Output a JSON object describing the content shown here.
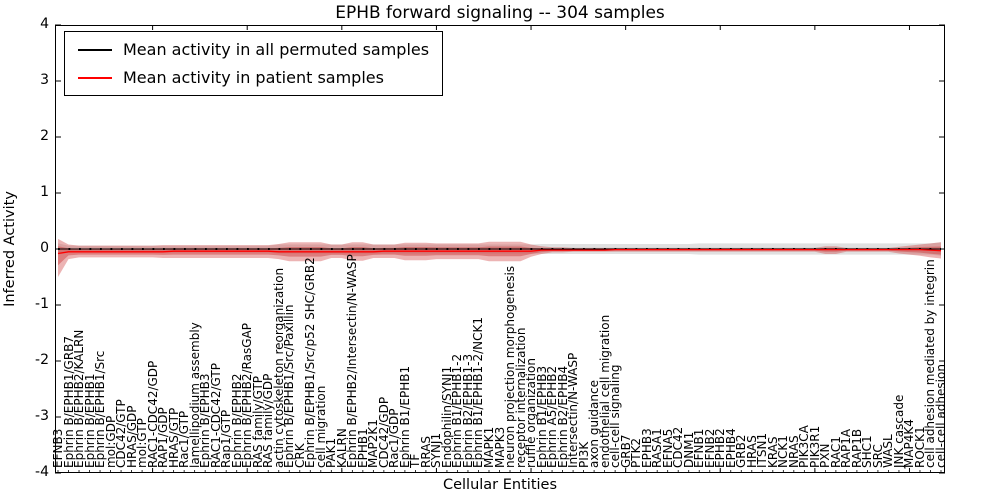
{
  "title": "EPHB forward signaling -- 304 samples",
  "chart_data": {
    "type": "line",
    "title": "EPHB forward signaling -- 304 samples",
    "xlabel": "Cellular Entities",
    "ylabel": "Inferred Activity",
    "ylim": [
      -4,
      4
    ],
    "grid": false,
    "legend_position": "upper left",
    "legend": [
      {
        "label": "Mean activity in all permuted samples",
        "color": "#000000"
      },
      {
        "label": "Mean activity in patient samples",
        "color": "#ff0000"
      }
    ],
    "yticks": [
      {
        "v": 4,
        "label": "4"
      },
      {
        "v": 3,
        "label": "3"
      },
      {
        "v": 2,
        "label": "2"
      },
      {
        "v": 1,
        "label": "1"
      },
      {
        "v": 0,
        "label": "0"
      },
      {
        "v": -1,
        "label": "-1"
      },
      {
        "v": -2,
        "label": "-2"
      },
      {
        "v": -3,
        "label": "-3"
      },
      {
        "v": -4,
        "label": "-4"
      }
    ],
    "categories": [
      "EFNB3",
      "Ephrin B/EPHB1/GRB7",
      "Ephrin B/EPHB2/KALRN",
      "Ephrin B/EPHB1",
      "Ephrin B/EPHB1/Src",
      "mol:GDP",
      "CDC42/GTP",
      "HRAS/GDP",
      "mol:GTP",
      "RAC1-CDC42/GDP",
      "RAP1/GDP",
      "HRAS/GTP",
      "Rac1/GTP",
      "lamellipodium assembly",
      "Ephrin B/EPHB3",
      "RAC1-CDC42/GTP",
      "Rap1/GTP",
      "Ephrin B/EPHB2",
      "Ephrin B/EPHB2/RasGAP",
      "RAS family/GTP",
      "RAS family/GDP",
      "actin cytoskeleton reorganization",
      "Ephrin B/EPHB1/Src/Paxillin",
      "CRK",
      "Ephrin B/EPHB1/Src/p52 SHC/GRB2",
      "cell migration",
      "PAK1",
      "KALRN",
      "Ephrin B/EPHB2/Intersectin/N-WASP",
      "EPHB1",
      "MAP2K1",
      "CDC42/GDP",
      "Rac1/GDP",
      "Ephrin B1/EPHB1",
      "TF",
      "RRAS",
      "SYNJ1",
      "Endophilin/SYNJ1",
      "Ephrin B1/EPHB1-2",
      "Ephrin B2/EPHB1-3",
      "Ephrin B1/EPHB1-2/NCK1",
      "MAPK1",
      "MAPK3",
      "neuron projection morphogenesis",
      "receptor internalization",
      "ruffle organization",
      "Ephrin B1/EPHB3",
      "Ephrin A5/EPHB2",
      "Ephrin B2/EPHB4",
      "Intersectin/N-WASP",
      "PI3K",
      "axon guidance",
      "endothelial cell migration",
      "cell-cell signaling",
      "GRB7",
      "PTK2",
      "EPHB3",
      "RASA1",
      "EFNA5",
      "CDC42",
      "DNM1",
      "EFNB1",
      "EFNB2",
      "EPHB2",
      "EPHB4",
      "GRB2",
      "HRAS",
      "ITSN1",
      "KRAS",
      "NCK1",
      "NRAS",
      "PIK3CA",
      "PIK3R1",
      "PXN",
      "RAC1",
      "RAP1A",
      "RAP1B",
      "SHC1",
      "SRC",
      "WASL",
      "JNK cascade",
      "MAP4K4",
      "ROCK1",
      "cell adhesion mediated by integrin",
      "cell-cell adhesion"
    ],
    "series": [
      {
        "name": "Mean activity in all permuted samples",
        "line_color": "#000000",
        "band_color": "#999999",
        "band_opacity": 0.3,
        "mean": 0,
        "half": [
          0.1,
          0.06,
          0.06,
          0.06,
          0.06,
          0.06,
          0.06,
          0.06,
          0.06,
          0.06,
          0.06,
          0.06,
          0.06,
          0.06,
          0.06,
          0.06,
          0.06,
          0.06,
          0.06,
          0.06,
          0.06,
          0.08,
          0.08,
          0.08,
          0.08,
          0.08,
          0.08,
          0.08,
          0.08,
          0.08,
          0.08,
          0.08,
          0.08,
          0.08,
          0.08,
          0.08,
          0.08,
          0.08,
          0.08,
          0.08,
          0.08,
          0.08,
          0.08,
          0.08,
          0.08,
          0.08,
          0.09,
          0.09,
          0.09,
          0.09,
          0.09,
          0.09,
          0.09,
          0.09,
          0.09,
          0.09,
          0.09,
          0.09,
          0.09,
          0.09,
          0.09,
          0.1,
          0.1,
          0.1,
          0.1,
          0.1,
          0.1,
          0.1,
          0.1,
          0.1,
          0.1,
          0.1,
          0.1,
          0.1,
          0.1,
          0.1,
          0.1,
          0.1,
          0.1,
          0.1,
          0.1,
          0.1,
          0.1,
          0.1,
          0.12
        ]
      },
      {
        "name": "Mean activity in patient samples",
        "line_color": "#ff0000",
        "band_color": "#cc3a3a",
        "band_opacity": 0.38,
        "mean": [
          -0.08,
          -0.05,
          -0.05,
          -0.05,
          -0.05,
          -0.05,
          -0.05,
          -0.05,
          -0.05,
          -0.05,
          -0.05,
          -0.04,
          -0.04,
          -0.04,
          -0.04,
          -0.04,
          -0.04,
          -0.04,
          -0.04,
          -0.04,
          -0.04,
          -0.05,
          -0.05,
          -0.05,
          -0.05,
          -0.05,
          -0.05,
          -0.05,
          -0.05,
          -0.05,
          -0.05,
          -0.04,
          -0.04,
          -0.04,
          -0.04,
          -0.04,
          -0.04,
          -0.04,
          -0.04,
          -0.04,
          -0.04,
          -0.04,
          -0.04,
          -0.04,
          -0.04,
          -0.04,
          -0.02,
          -0.02,
          -0.02,
          -0.02,
          -0.02,
          -0.02,
          -0.02,
          -0.01,
          -0.01,
          -0.01,
          -0.01,
          -0.01,
          -0.01,
          -0.01,
          -0.01,
          -0.01,
          -0.01,
          -0.01,
          -0.01,
          -0.01,
          -0.01,
          -0.01,
          -0.01,
          -0.01,
          -0.01,
          -0.01,
          -0.01,
          -0.01,
          -0.01,
          -0.01,
          -0.01,
          -0.01,
          -0.01,
          -0.01,
          -0.01,
          -0.01,
          -0.01,
          -0.02,
          -0.03
        ],
        "upper": [
          0.18,
          0.08,
          0.06,
          0.06,
          0.06,
          0.06,
          0.06,
          0.06,
          0.06,
          0.06,
          0.07,
          0.07,
          0.07,
          0.07,
          0.07,
          0.07,
          0.07,
          0.07,
          0.07,
          0.07,
          0.07,
          0.09,
          0.12,
          0.12,
          0.12,
          0.12,
          0.08,
          0.08,
          0.12,
          0.12,
          0.08,
          0.08,
          0.08,
          0.11,
          0.11,
          0.11,
          0.1,
          0.1,
          0.1,
          0.1,
          0.1,
          0.13,
          0.13,
          0.13,
          0.13,
          0.08,
          0.05,
          0.03,
          0.03,
          0.02,
          0.02,
          0.02,
          0.02,
          0.02,
          0.02,
          0.02,
          0.02,
          0.02,
          0.02,
          0.02,
          0.02,
          0.02,
          0.02,
          0.02,
          0.02,
          0.02,
          0.02,
          0.02,
          0.02,
          0.02,
          0.02,
          0.02,
          0.02,
          0.05,
          0.05,
          0.02,
          0.02,
          0.02,
          0.02,
          0.02,
          0.04,
          0.06,
          0.08,
          0.1,
          0.12
        ],
        "lower": [
          -0.5,
          -0.18,
          -0.15,
          -0.15,
          -0.15,
          -0.15,
          -0.15,
          -0.15,
          -0.15,
          -0.15,
          -0.16,
          -0.16,
          -0.16,
          -0.16,
          -0.16,
          -0.16,
          -0.16,
          -0.16,
          -0.16,
          -0.16,
          -0.16,
          -0.18,
          -0.22,
          -0.22,
          -0.22,
          -0.22,
          -0.16,
          -0.16,
          -0.21,
          -0.21,
          -0.16,
          -0.16,
          -0.16,
          -0.2,
          -0.2,
          -0.2,
          -0.18,
          -0.18,
          -0.18,
          -0.18,
          -0.18,
          -0.22,
          -0.22,
          -0.22,
          -0.22,
          -0.14,
          -0.09,
          -0.06,
          -0.06,
          -0.05,
          -0.05,
          -0.05,
          -0.05,
          -0.05,
          -0.05,
          -0.05,
          -0.05,
          -0.05,
          -0.05,
          -0.05,
          -0.05,
          -0.05,
          -0.05,
          -0.05,
          -0.05,
          -0.05,
          -0.05,
          -0.05,
          -0.05,
          -0.05,
          -0.05,
          -0.05,
          -0.05,
          -0.09,
          -0.09,
          -0.05,
          -0.05,
          -0.05,
          -0.05,
          -0.05,
          -0.08,
          -0.1,
          -0.12,
          -0.15,
          -0.17
        ]
      }
    ]
  }
}
